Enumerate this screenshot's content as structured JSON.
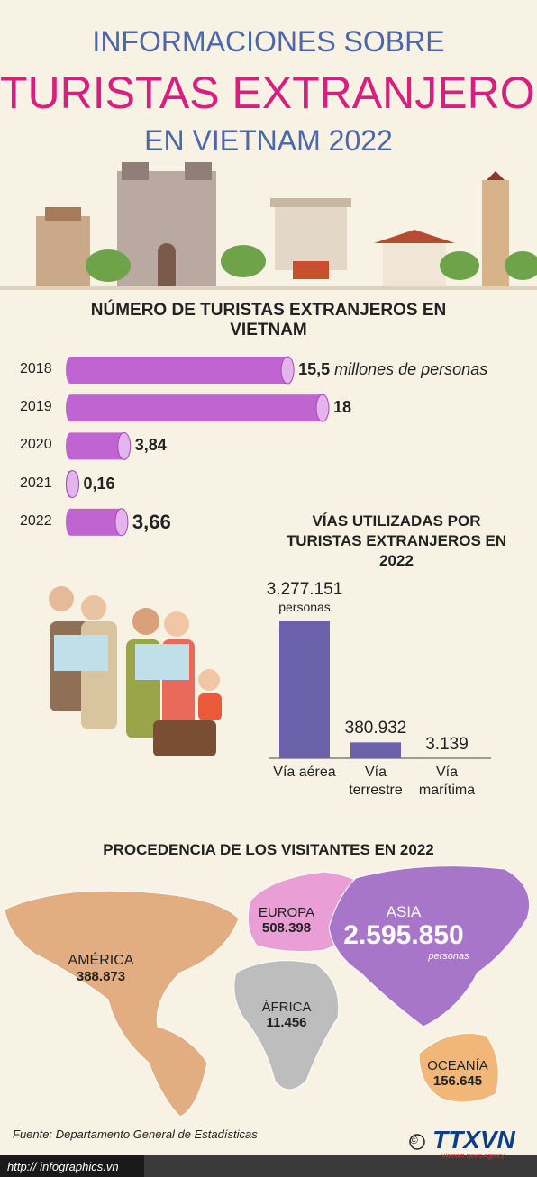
{
  "header": {
    "line1": "INFORMACIONES SOBRE",
    "line2": "TURISTAS EXTRANJEROS",
    "line3": "EN VIETNAM 2022"
  },
  "chart_data": [
    {
      "type": "hbar",
      "title": "NÚMERO DE TURISTAS EXTRANJEROS EN VIETNAM",
      "categories": [
        "2018",
        "2019",
        "2020",
        "2021",
        "2022"
      ],
      "values": [
        15.5,
        18,
        3.84,
        0.16,
        3.66
      ],
      "value_labels": [
        "15,5",
        "18",
        "3,84",
        "0,16",
        "3,66"
      ],
      "unit": "millones de personas",
      "color": "#c064d2"
    },
    {
      "type": "bar",
      "title": "VÍAS UTILIZADAS POR TURISTAS EXTRANJEROS EN 2022",
      "categories": [
        "Vía aérea",
        "Vía terrestre",
        "Vía marítima"
      ],
      "values": [
        3277151,
        380932,
        3139
      ],
      "value_labels": [
        "3.277.151",
        "380.932",
        "3.139"
      ],
      "unit": "personas",
      "color": "#6b60aa"
    },
    {
      "type": "map",
      "title": "PROCEDENCIA DE LOS VISITANTES EN 2022",
      "categories": [
        "AMÉRICA",
        "EUROPA",
        "ASIA",
        "ÁFRICA",
        "OCEANÍA"
      ],
      "values": [
        388873,
        508398,
        2595850,
        11456,
        156645
      ],
      "value_labels": [
        "388.873",
        "508.398",
        "2.595.850",
        "11.456",
        "156.645"
      ],
      "unit": "personas",
      "colors": [
        "#e3ad82",
        "#e99fd6",
        "#a876c8",
        "#bdbdbd",
        "#f0b778"
      ]
    }
  ],
  "footer": {
    "source": "Fuente: Departamento General de Estadísticas",
    "url": "http:// infographics.vn",
    "copyright": "©",
    "logo": "TTXVN",
    "agency": "Vietnam News Agency"
  }
}
